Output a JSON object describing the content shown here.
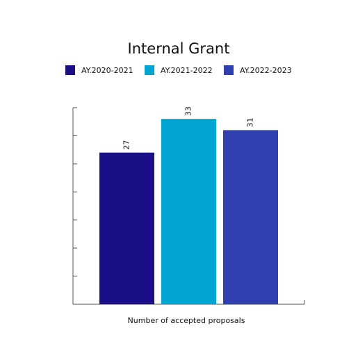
{
  "chart_data": {
    "type": "bar",
    "title": "Internal Grant",
    "x_label": "Number of accepted proposals",
    "series": [
      {
        "name": "AY.2020-2021",
        "color": "#1b0f88",
        "values": [
          27
        ]
      },
      {
        "name": "AY.2021-2022",
        "color": "#00a6d0",
        "values": [
          33
        ]
      },
      {
        "name": "AY.2022-2023",
        "color": "#2f3fb0",
        "values": [
          31
        ]
      }
    ],
    "ylim": [
      0,
      35
    ],
    "yticks": [
      0,
      5,
      10,
      15,
      20,
      25,
      30,
      35
    ],
    "legend": "top"
  }
}
